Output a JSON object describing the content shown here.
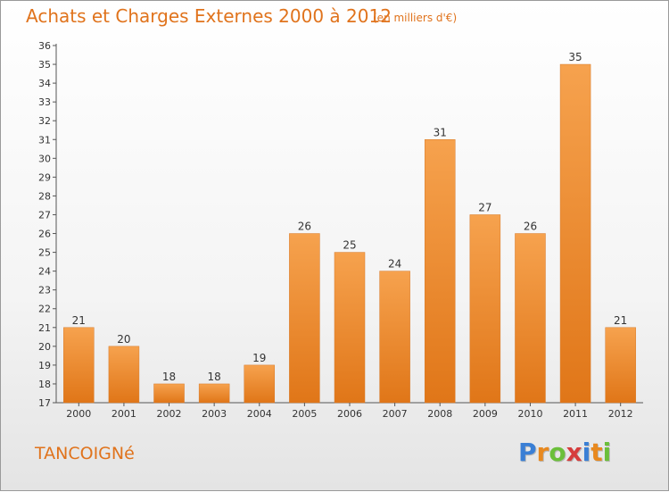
{
  "header": {
    "title": "Achats et Charges Externes 2000 à 2012",
    "unit": "(en milliers d'€)"
  },
  "footer": {
    "commune": "TANCOIGNé",
    "brand_letters": [
      {
        "ch": "P",
        "color": "#3a7fd5"
      },
      {
        "ch": "r",
        "color": "#e8891f"
      },
      {
        "ch": "o",
        "color": "#6bbf3a"
      },
      {
        "ch": "x",
        "color": "#d63d3d"
      },
      {
        "ch": "i",
        "color": "#3a7fd5"
      },
      {
        "ch": "t",
        "color": "#e8891f"
      },
      {
        "ch": "i",
        "color": "#6bbf3a"
      }
    ]
  },
  "chart_data": {
    "type": "bar",
    "title": "Achats et Charges Externes 2000 à 2012",
    "subtitle": "(en milliers d'€)",
    "xlabel": "",
    "ylabel": "",
    "categories": [
      "2000",
      "2001",
      "2002",
      "2003",
      "2004",
      "2005",
      "2006",
      "2007",
      "2008",
      "2009",
      "2010",
      "2011",
      "2012"
    ],
    "values": [
      21,
      20,
      18,
      18,
      19,
      26,
      25,
      24,
      31,
      27,
      26,
      35,
      21
    ],
    "data_labels": [
      "21",
      "20",
      "18",
      "18",
      "19",
      "26",
      "25",
      "24",
      "31",
      "27",
      "26",
      "35",
      "21"
    ],
    "ylim": [
      17,
      36
    ],
    "yticks": [
      17,
      18,
      19,
      20,
      21,
      22,
      23,
      24,
      25,
      26,
      27,
      28,
      29,
      30,
      31,
      32,
      33,
      34,
      35,
      36
    ],
    "grid": false,
    "bar_color_top": "#f6a24e",
    "bar_color_bottom": "#e07618",
    "text_color": "#e0731c"
  }
}
